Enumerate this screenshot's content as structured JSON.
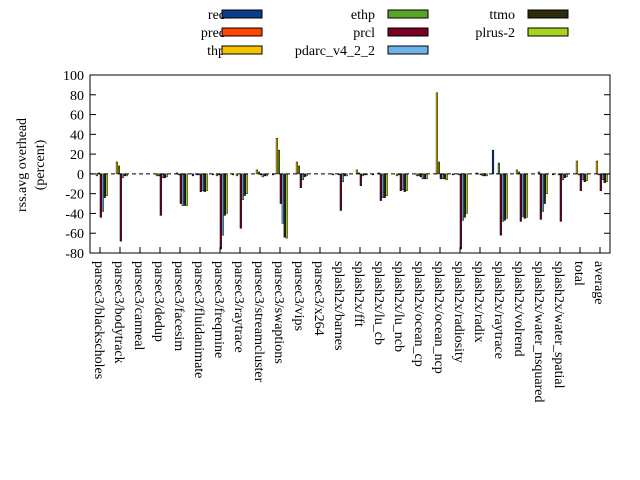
{
  "chart_data": {
    "type": "bar",
    "ylabel": "rss.avg overhead\n(percent)",
    "ylim": [
      -80,
      100
    ],
    "yticks": [
      -80,
      -60,
      -40,
      -20,
      0,
      20,
      40,
      60,
      80,
      100
    ],
    "legend_position": "top, three columns, outside plot",
    "grid": false,
    "categories": [
      "parsec3/blackscholes",
      "parsec3/bodytrack",
      "parsec3/canneal",
      "parsec3/dedup",
      "parsec3/facesim",
      "parsec3/fluidanimate",
      "parsec3/freqmine",
      "parsec3/raytrace",
      "parsec3/streamcluster",
      "parsec3/swaptions",
      "parsec3/vips",
      "parsec3/x264",
      "splash2x/barnes",
      "splash2x/fft",
      "splash2x/lu_cb",
      "splash2x/lu_ncb",
      "splash2x/ocean_cp",
      "splash2x/ocean_ncp",
      "splash2x/radiosity",
      "splash2x/radix",
      "splash2x/raytrace",
      "splash2x/volrend",
      "splash2x/water_nsquared",
      "splash2x/water_spatial",
      "total",
      "average"
    ],
    "series": [
      {
        "name": "rec",
        "color": "#0b3b8c",
        "values": [
          0,
          0,
          0,
          0,
          0,
          -2,
          -1,
          -1,
          0,
          -1,
          0,
          0,
          -1,
          0,
          -1,
          0,
          0,
          0,
          -1,
          0,
          24,
          0,
          0,
          -1,
          0,
          0
        ]
      },
      {
        "name": "prec",
        "color": "#ff4500",
        "values": [
          0,
          0,
          0,
          0,
          0,
          0,
          0,
          0,
          0,
          0,
          0,
          0,
          0,
          0,
          0,
          0,
          0,
          0,
          0,
          0,
          0,
          0,
          0,
          0,
          0,
          0
        ]
      },
      {
        "name": "thp",
        "color": "#f5c400",
        "values": [
          -2,
          12,
          0,
          -2,
          1,
          -1,
          -2,
          -2,
          4,
          36,
          12,
          0,
          0,
          4,
          0,
          -2,
          -2,
          82,
          0,
          1,
          0,
          4,
          0,
          0,
          13,
          13
        ]
      },
      {
        "name": "ethp",
        "color": "#5aa528",
        "values": [
          1,
          8,
          0,
          -2,
          -1,
          -1,
          -1,
          0,
          2,
          24,
          8,
          0,
          -1,
          1,
          1,
          -1,
          -2,
          12,
          -1,
          0,
          11,
          2,
          2,
          -1,
          -1,
          -1
        ]
      },
      {
        "name": "prcl",
        "color": "#7a0026",
        "values": [
          -44,
          -68,
          0,
          -42,
          -30,
          -18,
          -76,
          -55,
          -1,
          -30,
          -14,
          0,
          -37,
          -12,
          -27,
          -17,
          -3,
          -5,
          -76,
          -1,
          -62,
          -48,
          -46,
          -48,
          -17,
          -17
        ]
      },
      {
        "name": "pdarc_v4_2_2",
        "color": "#6fb4e8",
        "values": [
          -38,
          -4,
          0,
          -4,
          -32,
          -17,
          -62,
          -26,
          -3,
          -50,
          -6,
          0,
          -8,
          -2,
          -24,
          -16,
          -5,
          -5,
          -47,
          -2,
          -48,
          -43,
          -38,
          -6,
          -6,
          -6
        ]
      },
      {
        "name": "ttmo",
        "color": "#2b2b0c",
        "values": [
          -24,
          -2,
          0,
          -4,
          -32,
          -18,
          -42,
          -22,
          -2,
          -64,
          -3,
          0,
          -2,
          -1,
          -24,
          -18,
          -5,
          -5,
          -44,
          -2,
          -47,
          -45,
          -30,
          -4,
          -8,
          -9
        ]
      },
      {
        "name": "plrus-2",
        "color": "#a6d41e",
        "values": [
          -22,
          -2,
          0,
          -3,
          -32,
          -17,
          -40,
          -20,
          -2,
          -65,
          -2,
          0,
          -2,
          -1,
          -22,
          -17,
          -5,
          -6,
          -40,
          -2,
          -45,
          -44,
          -20,
          -3,
          -7,
          -8
        ]
      }
    ]
  }
}
